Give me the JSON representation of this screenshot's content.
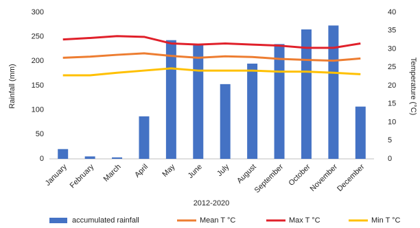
{
  "chart_data": {
    "type": "bar",
    "x_label": "2012-2020",
    "y_label": "Rainfall (mm)",
    "y2_label": "Temperature (°C)",
    "categories": [
      "January",
      "February",
      "March",
      "April",
      "May",
      "June",
      "July",
      "August",
      "September",
      "October",
      "November",
      "December"
    ],
    "series": [
      {
        "name": "accumulated rainfall",
        "type": "bar",
        "color": "#4472c4",
        "values": [
          20,
          5,
          3,
          87,
          243,
          235,
          153,
          195,
          235,
          265,
          273,
          107
        ]
      },
      {
        "name": "Mean T °C",
        "type": "line",
        "axis": "y2",
        "color": "#ed7d31",
        "values": [
          27.6,
          27.9,
          28.4,
          28.8,
          28.1,
          27.6,
          28.0,
          27.8,
          27.3,
          27.0,
          26.8,
          27.4
        ]
      },
      {
        "name": "Max T °C",
        "type": "line",
        "axis": "y2",
        "color": "#e0202a",
        "values": [
          32.6,
          33.0,
          33.5,
          33.3,
          31.5,
          31.2,
          31.5,
          31.2,
          30.9,
          30.3,
          30.3,
          31.5
        ]
      },
      {
        "name": "Min T °C",
        "type": "line",
        "axis": "y2",
        "color": "#ffc000",
        "values": [
          22.8,
          22.8,
          23.5,
          24.1,
          24.7,
          24.1,
          24.1,
          24.1,
          23.8,
          23.8,
          23.5,
          23.1
        ]
      }
    ],
    "ylim": [
      0,
      300
    ],
    "yticks": [
      0,
      50,
      100,
      150,
      200,
      250,
      300
    ],
    "y2lim": [
      0,
      40
    ],
    "y2ticks": [
      0,
      5,
      10,
      15,
      20,
      25,
      30,
      35,
      40
    ],
    "grid": false
  }
}
